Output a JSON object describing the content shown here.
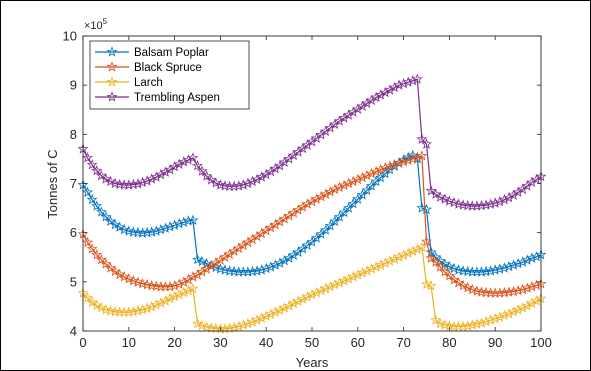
{
  "chart_data": {
    "type": "line",
    "title": "",
    "xlabel": "Years",
    "ylabel": "Tonnes of C",
    "y_exponent_label": "×10",
    "y_exponent_power": "5",
    "xlim": [
      0,
      100
    ],
    "ylim": [
      4,
      10
    ],
    "xticks": [
      0,
      10,
      20,
      30,
      40,
      50,
      60,
      70,
      80,
      90,
      100
    ],
    "yticks": [
      4,
      5,
      6,
      7,
      8,
      9,
      10
    ],
    "grid": false,
    "legend_position": "top-left",
    "x": [
      0,
      1,
      2,
      3,
      4,
      5,
      6,
      7,
      8,
      9,
      10,
      11,
      12,
      13,
      14,
      15,
      16,
      17,
      18,
      19,
      20,
      21,
      22,
      23,
      24,
      25,
      26,
      27,
      28,
      29,
      30,
      31,
      32,
      33,
      34,
      35,
      36,
      37,
      38,
      39,
      40,
      41,
      42,
      43,
      44,
      45,
      46,
      47,
      48,
      49,
      50,
      51,
      52,
      53,
      54,
      55,
      56,
      57,
      58,
      59,
      60,
      61,
      62,
      63,
      64,
      65,
      66,
      67,
      68,
      69,
      70,
      71,
      72,
      73,
      74,
      75,
      76,
      77,
      78,
      79,
      80,
      81,
      82,
      83,
      84,
      85,
      86,
      87,
      88,
      89,
      90,
      91,
      92,
      93,
      94,
      95,
      96,
      97,
      98,
      99,
      100
    ],
    "series": [
      {
        "name": "Balsam Poplar",
        "color": "#0072BD",
        "values": [
          6.97,
          6.82,
          6.67,
          6.54,
          6.42,
          6.32,
          6.23,
          6.16,
          6.11,
          6.06,
          6.03,
          6.01,
          6.0,
          5.99,
          6.0,
          6.01,
          6.03,
          6.06,
          6.09,
          6.12,
          6.15,
          6.18,
          6.21,
          6.24,
          6.25,
          5.45,
          5.41,
          5.37,
          5.33,
          5.29,
          5.26,
          5.24,
          5.22,
          5.21,
          5.2,
          5.2,
          5.2,
          5.21,
          5.22,
          5.24,
          5.27,
          5.3,
          5.34,
          5.38,
          5.43,
          5.48,
          5.54,
          5.6,
          5.67,
          5.74,
          5.81,
          5.89,
          5.97,
          6.05,
          6.14,
          6.23,
          6.32,
          6.41,
          6.5,
          6.59,
          6.68,
          6.77,
          6.86,
          6.95,
          7.04,
          7.12,
          7.2,
          7.28,
          7.35,
          7.42,
          7.48,
          7.53,
          7.57,
          7.5,
          6.5,
          6.47,
          5.6,
          5.5,
          5.42,
          5.36,
          5.31,
          5.27,
          5.24,
          5.22,
          5.21,
          5.2,
          5.2,
          5.2,
          5.21,
          5.22,
          5.24,
          5.26,
          5.28,
          5.31,
          5.34,
          5.37,
          5.4,
          5.44,
          5.48,
          5.51,
          5.55
        ]
      },
      {
        "name": "Black Spruce",
        "color": "#D95319",
        "values": [
          5.97,
          5.8,
          5.67,
          5.55,
          5.45,
          5.36,
          5.28,
          5.21,
          5.15,
          5.1,
          5.06,
          5.02,
          4.99,
          4.96,
          4.94,
          4.92,
          4.91,
          4.9,
          4.9,
          4.9,
          4.92,
          4.95,
          4.99,
          5.04,
          5.1,
          5.14,
          5.2,
          5.26,
          5.32,
          5.38,
          5.44,
          5.5,
          5.56,
          5.62,
          5.68,
          5.74,
          5.8,
          5.86,
          5.92,
          5.98,
          6.04,
          6.1,
          6.16,
          6.22,
          6.28,
          6.34,
          6.4,
          6.46,
          6.52,
          6.58,
          6.63,
          6.68,
          6.73,
          6.78,
          6.83,
          6.88,
          6.92,
          6.96,
          7.0,
          7.04,
          7.08,
          7.12,
          7.16,
          7.2,
          7.24,
          7.28,
          7.32,
          7.35,
          7.38,
          7.41,
          7.44,
          7.47,
          7.5,
          7.53,
          7.56,
          5.82,
          5.48,
          5.4,
          5.3,
          5.2,
          5.12,
          5.04,
          4.98,
          4.92,
          4.88,
          4.84,
          4.81,
          4.79,
          4.78,
          4.77,
          4.77,
          4.77,
          4.78,
          4.79,
          4.8,
          4.82,
          4.84,
          4.87,
          4.9,
          4.93,
          4.96
        ]
      },
      {
        "name": "Larch",
        "color": "#EDB120",
        "values": [
          4.77,
          4.67,
          4.58,
          4.52,
          4.47,
          4.43,
          4.41,
          4.39,
          4.38,
          4.38,
          4.38,
          4.39,
          4.41,
          4.43,
          4.46,
          4.49,
          4.53,
          4.57,
          4.61,
          4.66,
          4.7,
          4.74,
          4.78,
          4.82,
          4.86,
          4.15,
          4.11,
          4.08,
          4.06,
          4.05,
          4.04,
          4.04,
          4.05,
          4.07,
          4.09,
          4.12,
          4.15,
          4.18,
          4.22,
          4.26,
          4.3,
          4.34,
          4.38,
          4.42,
          4.47,
          4.51,
          4.56,
          4.6,
          4.65,
          4.69,
          4.74,
          4.78,
          4.82,
          4.86,
          4.9,
          4.94,
          4.98,
          5.02,
          5.06,
          5.1,
          5.14,
          5.18,
          5.22,
          5.26,
          5.3,
          5.34,
          5.38,
          5.42,
          5.46,
          5.5,
          5.54,
          5.58,
          5.62,
          5.66,
          5.7,
          4.95,
          4.92,
          4.22,
          4.15,
          4.12,
          4.1,
          4.09,
          4.09,
          4.09,
          4.1,
          4.12,
          4.14,
          4.16,
          4.19,
          4.22,
          4.25,
          4.28,
          4.32,
          4.35,
          4.39,
          4.43,
          4.47,
          4.51,
          4.56,
          4.61,
          4.66
        ]
      },
      {
        "name": "Trembling Aspen",
        "color": "#7E2F8E",
        "values": [
          7.7,
          7.52,
          7.38,
          7.26,
          7.16,
          7.09,
          7.04,
          7.0,
          6.98,
          6.97,
          6.97,
          6.98,
          6.99,
          7.02,
          7.05,
          7.09,
          7.13,
          7.18,
          7.23,
          7.28,
          7.34,
          7.39,
          7.44,
          7.48,
          7.52,
          7.36,
          7.25,
          7.15,
          7.07,
          7.01,
          6.97,
          6.95,
          6.94,
          6.94,
          6.95,
          6.97,
          7.0,
          7.04,
          7.08,
          7.13,
          7.18,
          7.24,
          7.3,
          7.36,
          7.43,
          7.5,
          7.57,
          7.64,
          7.71,
          7.78,
          7.85,
          7.92,
          7.99,
          8.06,
          8.13,
          8.2,
          8.27,
          8.33,
          8.39,
          8.45,
          8.51,
          8.57,
          8.63,
          8.69,
          8.75,
          8.8,
          8.85,
          8.9,
          8.95,
          9.0,
          9.03,
          9.06,
          9.09,
          9.12,
          7.9,
          7.8,
          6.85,
          6.78,
          6.72,
          6.68,
          6.64,
          6.61,
          6.58,
          6.56,
          6.55,
          6.54,
          6.54,
          6.55,
          6.56,
          6.58,
          6.6,
          6.63,
          6.67,
          6.71,
          6.76,
          6.82,
          6.88,
          6.95,
          7.02,
          7.08,
          7.14
        ]
      }
    ]
  }
}
